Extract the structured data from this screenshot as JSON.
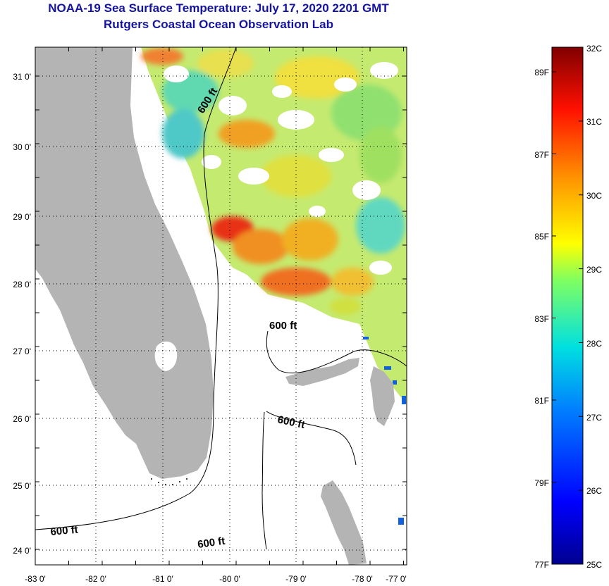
{
  "title": {
    "line1": "NOAA-19 Sea Surface Temperature:  July 17, 2020 2201 GMT",
    "line2": "Rutgers Coastal Ocean Observation Lab"
  },
  "map": {
    "lon_labels": [
      "-83 0'",
      "-82 0'",
      "-81 0'",
      "-80 0'",
      "-79 0'",
      "-78 0'",
      "-77 0'"
    ],
    "lat_labels": [
      "31 0'",
      "30 0'",
      "29 0'",
      "28 0'",
      "27 0'",
      "26 0'",
      "25 0'",
      "24 0'"
    ],
    "contour_label": "600 ft",
    "contour_depth_ft": 600
  },
  "colorbar": {
    "celsius_labels": [
      "32C",
      "31C",
      "30C",
      "29C",
      "28C",
      "27C",
      "26C",
      "25C"
    ],
    "fahrenheit_labels": [
      "89F",
      "87F",
      "85F",
      "83F",
      "81F",
      "79F",
      "77F"
    ],
    "min_c": 25,
    "max_c": 32
  },
  "colors": {
    "title": "#1414a0",
    "land": "#b4b4b4",
    "warm": "#e8281a",
    "cool": "#20c8d8"
  }
}
